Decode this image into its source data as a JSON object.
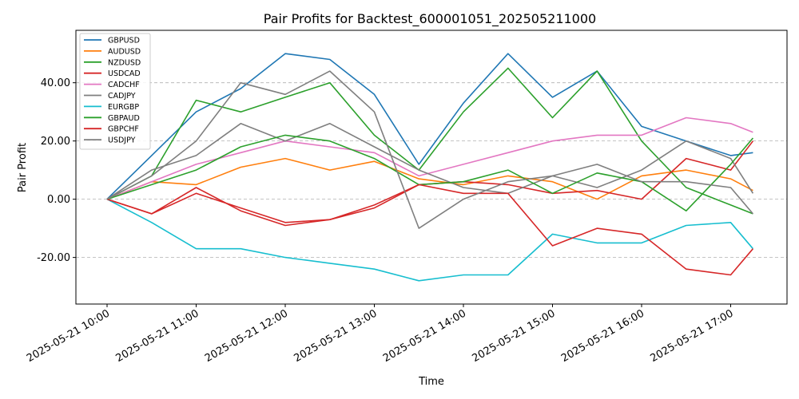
{
  "chart_data": {
    "type": "line",
    "title": "Pair Profits for Backtest_600001051_202505211000",
    "xlabel": "Time",
    "ylabel": "Pair Profit",
    "x": [
      "2025-05-21 10:00",
      "2025-05-21 10:30",
      "2025-05-21 11:00",
      "2025-05-21 11:30",
      "2025-05-21 12:00",
      "2025-05-21 12:30",
      "2025-05-21 13:00",
      "2025-05-21 13:30",
      "2025-05-21 14:00",
      "2025-05-21 14:30",
      "2025-05-21 15:00",
      "2025-05-21 15:30",
      "2025-05-21 16:00",
      "2025-05-21 16:30",
      "2025-05-21 17:00",
      "2025-05-21 17:15"
    ],
    "xticks": [
      "2025-05-21 10:00",
      "2025-05-21 11:00",
      "2025-05-21 12:00",
      "2025-05-21 13:00",
      "2025-05-21 14:00",
      "2025-05-21 15:00",
      "2025-05-21 16:00",
      "2025-05-21 17:00"
    ],
    "ylim": [
      -36,
      58
    ],
    "yticks": [
      "-20.00",
      "0.00",
      "20.00",
      "40.00"
    ],
    "grid": "y-dashed",
    "legend_position": "top-left",
    "series": [
      {
        "name": "GBPUSD",
        "color": "#1f77b4",
        "values": [
          0,
          15,
          30,
          38,
          50,
          48,
          36,
          12,
          33,
          50,
          35,
          44,
          25,
          20,
          15,
          16
        ]
      },
      {
        "name": "AUDUSD",
        "color": "#ff7f0e",
        "values": [
          0,
          6,
          5,
          11,
          14,
          10,
          13,
          7,
          5,
          8,
          6,
          0,
          8,
          10,
          7,
          3
        ]
      },
      {
        "name": "NZDUSD",
        "color": "#2ca02c",
        "values": [
          0,
          8,
          34,
          30,
          35,
          40,
          22,
          10,
          30,
          45,
          28,
          44,
          20,
          4,
          -2,
          -5
        ]
      },
      {
        "name": "USDCAD",
        "color": "#d62728",
        "values": [
          0,
          -5,
          2,
          -3,
          -8,
          -7,
          -2,
          5,
          6,
          5,
          2,
          3,
          0,
          14,
          10,
          20
        ]
      },
      {
        "name": "CADCHF",
        "color": "#e377c2",
        "values": [
          0,
          6,
          12,
          16,
          20,
          18,
          16,
          8,
          12,
          16,
          20,
          22,
          22,
          28,
          26,
          23
        ]
      },
      {
        "name": "CADJPY",
        "color": "#7f7f7f",
        "values": [
          0,
          10,
          15,
          26,
          20,
          26,
          18,
          10,
          4,
          2,
          8,
          4,
          10,
          20,
          14,
          2
        ]
      },
      {
        "name": "EURGBP",
        "color": "#17becf",
        "values": [
          0,
          -8,
          -17,
          -17,
          -20,
          -22,
          -24,
          -28,
          -26,
          -26,
          -12,
          -15,
          -15,
          -9,
          -8,
          -17
        ]
      },
      {
        "name": "GBPAUD",
        "color": "#2ca02c",
        "values": [
          0,
          5,
          10,
          18,
          22,
          20,
          14,
          5,
          6,
          10,
          2,
          9,
          6,
          -4,
          12,
          21
        ]
      },
      {
        "name": "GBPCHF",
        "color": "#d62728",
        "values": [
          0,
          -5,
          4,
          -4,
          -9,
          -7,
          -3,
          5,
          2,
          2,
          -16,
          -10,
          -12,
          -24,
          -26,
          -17
        ]
      },
      {
        "name": "USDJPY",
        "color": "#7f7f7f",
        "values": [
          0,
          8,
          20,
          40,
          36,
          44,
          30,
          -10,
          0,
          6,
          8,
          12,
          6,
          6,
          4,
          -5
        ]
      }
    ]
  }
}
